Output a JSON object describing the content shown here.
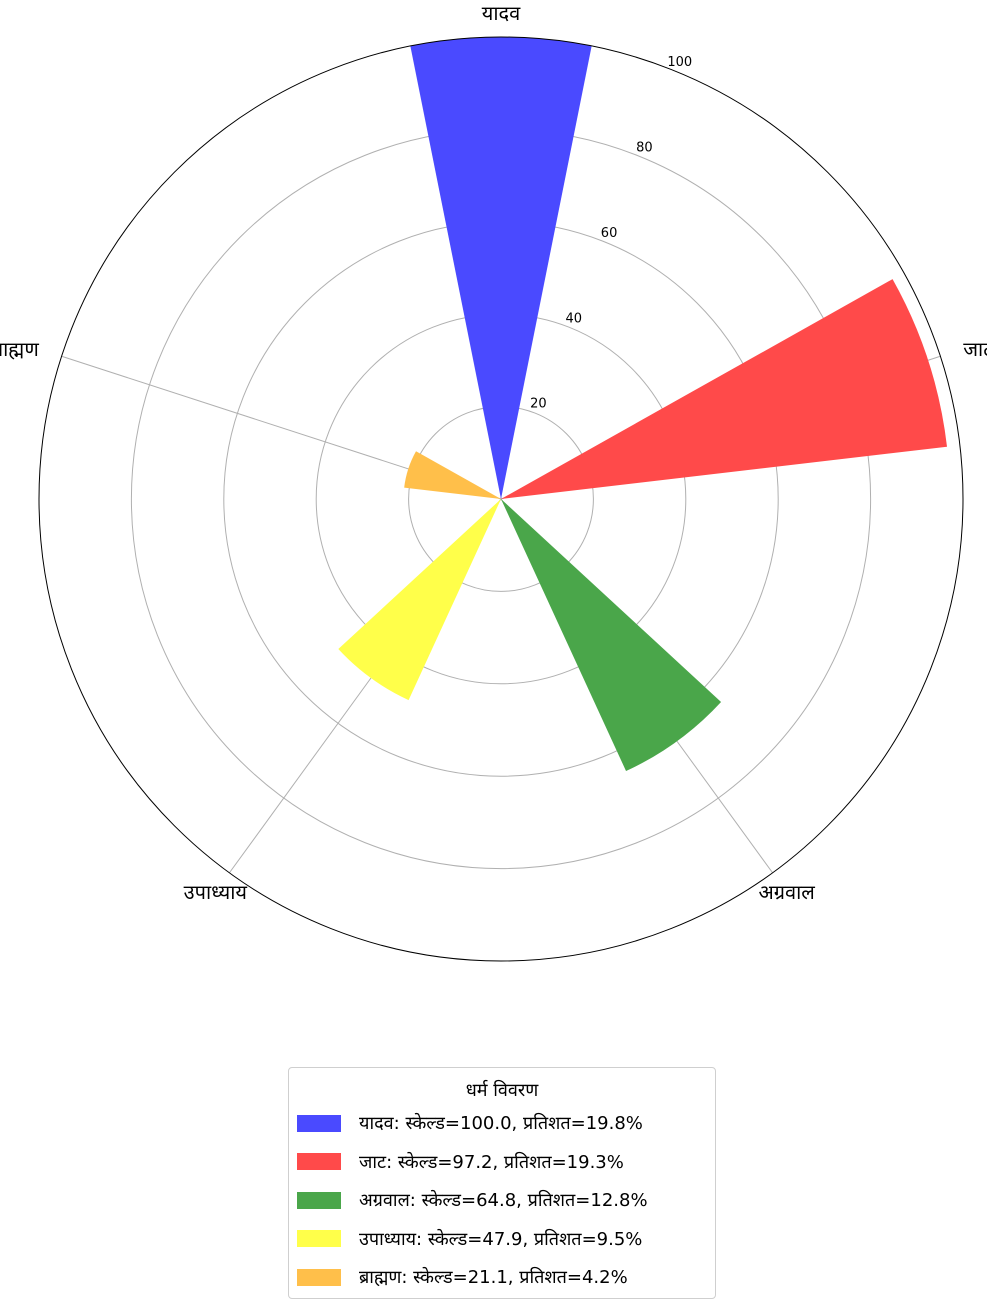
{
  "chart_data": {
    "type": "polar-bar",
    "rmax": 100,
    "rticks": [
      20,
      40,
      60,
      80,
      100
    ],
    "grid": true,
    "categories": [
      "यादव",
      "जाट",
      "अग्रवाल",
      "उपाध्याय",
      "ब्राह्मण"
    ],
    "scaled_values": [
      100.0,
      97.2,
      64.8,
      47.9,
      21.1
    ],
    "percentages": [
      19.8,
      19.3,
      12.8,
      9.5,
      4.2
    ],
    "colors": [
      "#4a4aff",
      "#ff4a4a",
      "#4aa64a",
      "#ffff4a",
      "#ffbf4a"
    ],
    "axis_labels": [
      "यादव",
      "जाट",
      "अग्रवाल",
      "उपाध्याय",
      "ब्राह्मण"
    ],
    "legend": {
      "title": "धर्म विवरण",
      "placement": "bottom-center",
      "entries": [
        "यादव: स्केल्ड=100.0, प्रतिशत=19.8%",
        "जाट: स्केल्ड=97.2, प्रतिशत=19.3%",
        "अग्रवाल: स्केल्ड=64.8, प्रतिशत=12.8%",
        "उपाध्याय: स्केल्ड=47.9, प्रतिशत=9.5%",
        "ब्राह्मण: स्केल्ड=21.1, प्रतिशत=4.2%"
      ]
    }
  }
}
